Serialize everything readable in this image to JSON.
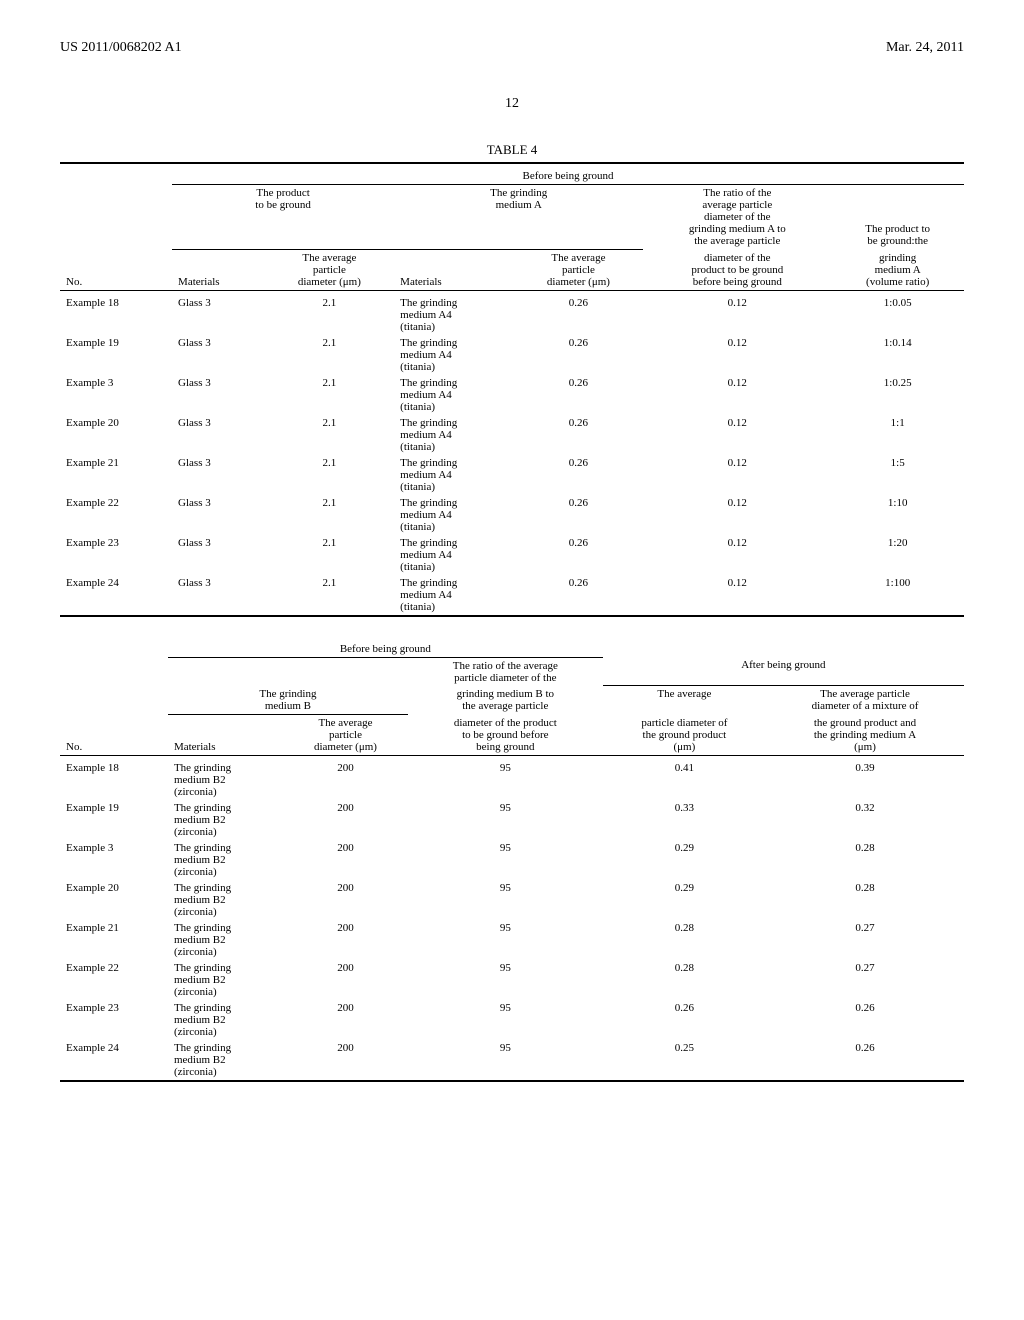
{
  "header": {
    "left": "US 2011/0068202 A1",
    "right": "Mar. 24, 2011"
  },
  "page_number": "12",
  "table4": {
    "title": "TABLE 4",
    "section1": {
      "super_header": "Before being ground",
      "group_a": "The product\nto be ground",
      "group_b": "The grinding\nmedium A",
      "col_ratio_top": "The ratio of the\naverage particle\ndiameter of the\ngrinding medium A to\nthe average particle",
      "col_vol_top": "The product to\nbe ground:the",
      "cols": {
        "no": "No.",
        "mat": "Materials",
        "diamA": "The average\nparticle\ndiameter (μm)",
        "mat2": "Materials",
        "diamB": "The average\nparticle\ndiameter (μm)",
        "ratio": "diameter of the\nproduct to be ground\nbefore being ground",
        "vol": "grinding\nmedium A\n(volume ratio)"
      },
      "rows": [
        {
          "no": "Example 18",
          "mat": "Glass 3",
          "diamA": "2.1",
          "mat2": "The grinding\nmedium A4\n(titania)",
          "diamB": "0.26",
          "ratio": "0.12",
          "vol": "1:0.05"
        },
        {
          "no": "Example 19",
          "mat": "Glass 3",
          "diamA": "2.1",
          "mat2": "The grinding\nmedium A4\n(titania)",
          "diamB": "0.26",
          "ratio": "0.12",
          "vol": "1:0.14"
        },
        {
          "no": "Example 3",
          "mat": "Glass 3",
          "diamA": "2.1",
          "mat2": "The grinding\nmedium A4\n(titania)",
          "diamB": "0.26",
          "ratio": "0.12",
          "vol": "1:0.25"
        },
        {
          "no": "Example 20",
          "mat": "Glass 3",
          "diamA": "2.1",
          "mat2": "The grinding\nmedium A4\n(titania)",
          "diamB": "0.26",
          "ratio": "0.12",
          "vol": "1:1"
        },
        {
          "no": "Example 21",
          "mat": "Glass 3",
          "diamA": "2.1",
          "mat2": "The grinding\nmedium A4\n(titania)",
          "diamB": "0.26",
          "ratio": "0.12",
          "vol": "1:5"
        },
        {
          "no": "Example 22",
          "mat": "Glass 3",
          "diamA": "2.1",
          "mat2": "The grinding\nmedium A4\n(titania)",
          "diamB": "0.26",
          "ratio": "0.12",
          "vol": "1:10"
        },
        {
          "no": "Example 23",
          "mat": "Glass 3",
          "diamA": "2.1",
          "mat2": "The grinding\nmedium A4\n(titania)",
          "diamB": "0.26",
          "ratio": "0.12",
          "vol": "1:20"
        },
        {
          "no": "Example 24",
          "mat": "Glass 3",
          "diamA": "2.1",
          "mat2": "The grinding\nmedium A4\n(titania)",
          "diamB": "0.26",
          "ratio": "0.12",
          "vol": "1:100"
        }
      ]
    },
    "section2": {
      "super_before": "Before being ground",
      "super_after": "After being ground",
      "sub_ratio_top": "The ratio of the average\nparticle diameter of the",
      "group_b": "The grinding\nmedium B",
      "sub_ratio_mid": "grinding medium B to\nthe average particle",
      "sub_after_avg": "The average",
      "sub_after_mix": "The average particle\ndiameter of a mixture of",
      "cols": {
        "no": "No.",
        "mat": "Materials",
        "diam": "The average\nparticle\ndiameter (μm)",
        "ratio": "diameter of the product\nto be ground before\nbeing ground",
        "after1": "particle diameter of\nthe ground product\n(μm)",
        "after2": "the ground product and\nthe grinding medium A\n(μm)"
      },
      "rows": [
        {
          "no": "Example 18",
          "mat": "The grinding\nmedium B2\n(zirconia)",
          "diam": "200",
          "ratio": "95",
          "a1": "0.41",
          "a2": "0.39"
        },
        {
          "no": "Example 19",
          "mat": "The grinding\nmedium B2\n(zirconia)",
          "diam": "200",
          "ratio": "95",
          "a1": "0.33",
          "a2": "0.32"
        },
        {
          "no": "Example 3",
          "mat": "The grinding\nmedium B2\n(zirconia)",
          "diam": "200",
          "ratio": "95",
          "a1": "0.29",
          "a2": "0.28"
        },
        {
          "no": "Example 20",
          "mat": "The grinding\nmedium B2\n(zirconia)",
          "diam": "200",
          "ratio": "95",
          "a1": "0.29",
          "a2": "0.28"
        },
        {
          "no": "Example 21",
          "mat": "The grinding\nmedium B2\n(zirconia)",
          "diam": "200",
          "ratio": "95",
          "a1": "0.28",
          "a2": "0.27"
        },
        {
          "no": "Example 22",
          "mat": "The grinding\nmedium B2\n(zirconia)",
          "diam": "200",
          "ratio": "95",
          "a1": "0.28",
          "a2": "0.27"
        },
        {
          "no": "Example 23",
          "mat": "The grinding\nmedium B2\n(zirconia)",
          "diam": "200",
          "ratio": "95",
          "a1": "0.26",
          "a2": "0.26"
        },
        {
          "no": "Example 24",
          "mat": "The grinding\nmedium B2\n(zirconia)",
          "diam": "200",
          "ratio": "95",
          "a1": "0.25",
          "a2": "0.26"
        }
      ]
    }
  }
}
